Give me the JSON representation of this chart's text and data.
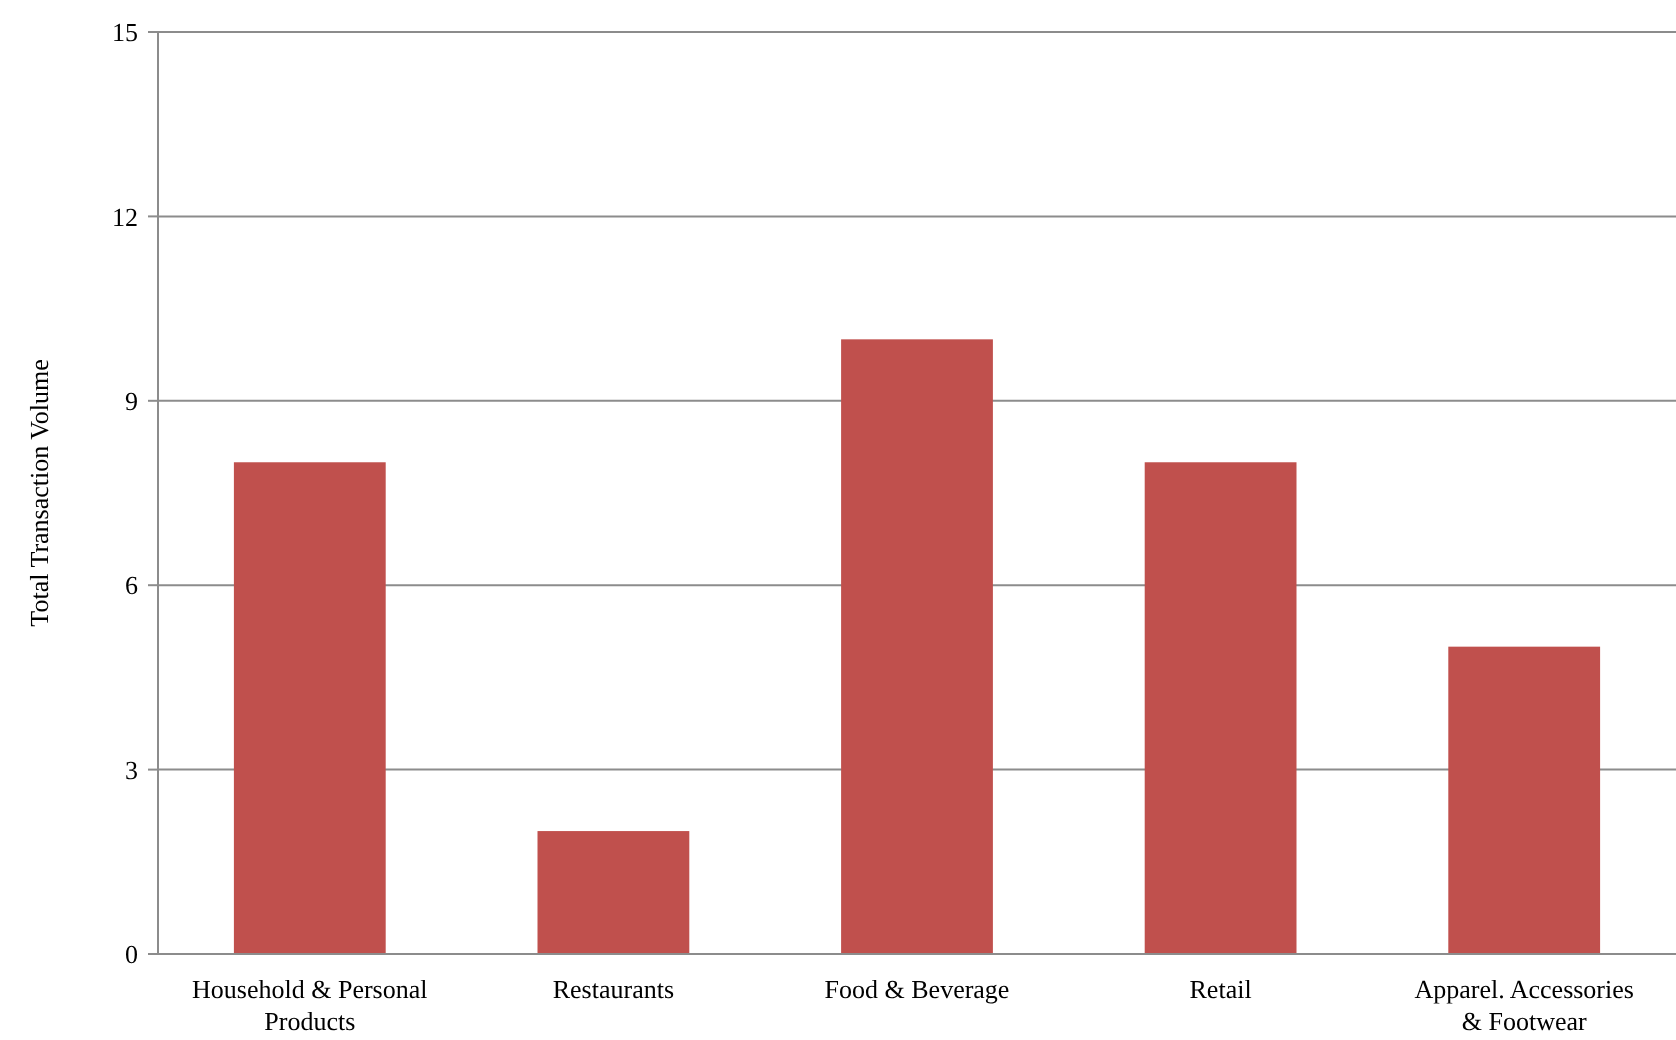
{
  "chart_data": {
    "type": "bar",
    "ylabel": "Total Transaction Volume",
    "categories": [
      "Household & Personal Products",
      "Restaurants",
      "Food & Beverage",
      "Retail",
      "Apparel. Accessories & Footwear"
    ],
    "values": [
      8,
      2,
      10,
      8,
      5
    ],
    "color": "#c0504d",
    "ylim": [
      0,
      15
    ],
    "yticks": [
      0,
      3,
      6,
      9,
      12,
      15
    ],
    "grid": "y"
  }
}
